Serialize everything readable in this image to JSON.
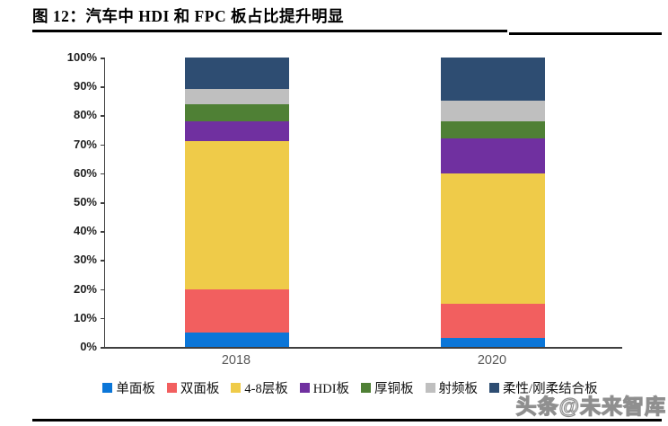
{
  "figure": {
    "title": "图 12：汽车中 HDI 和 FPC 板占比提升明显",
    "watermark": "头条@未来智库"
  },
  "chart_data": {
    "type": "bar",
    "stacked": true,
    "percent_stacked": true,
    "title": "图 12：汽车中 HDI 和 FPC 板占比提升明显",
    "categories": [
      "2018",
      "2020"
    ],
    "series": [
      {
        "name": "单面板",
        "color": "#0B76D8",
        "values": [
          5,
          3
        ]
      },
      {
        "name": "双面板",
        "color": "#F25F5F",
        "values": [
          15,
          12
        ]
      },
      {
        "name": "4-8层板",
        "color": "#EFCB49",
        "values": [
          51,
          45
        ]
      },
      {
        "name": "HDI板",
        "color": "#7030A0",
        "values": [
          7,
          12
        ]
      },
      {
        "name": "厚铜板",
        "color": "#4F8035",
        "values": [
          6,
          6
        ]
      },
      {
        "name": "射频板",
        "color": "#BFBFBF",
        "values": [
          5,
          7
        ]
      },
      {
        "name": "柔性/刚柔结合板",
        "color": "#2E4D72",
        "values": [
          11,
          15
        ]
      }
    ],
    "xlabel": "",
    "ylabel": "",
    "ylim": [
      0,
      100
    ],
    "y_ticks": [
      "0%",
      "10%",
      "20%",
      "30%",
      "40%",
      "50%",
      "60%",
      "70%",
      "80%",
      "90%",
      "100%"
    ],
    "grid": false,
    "legend_position": "bottom",
    "axis_color": "#3f3f3f"
  }
}
